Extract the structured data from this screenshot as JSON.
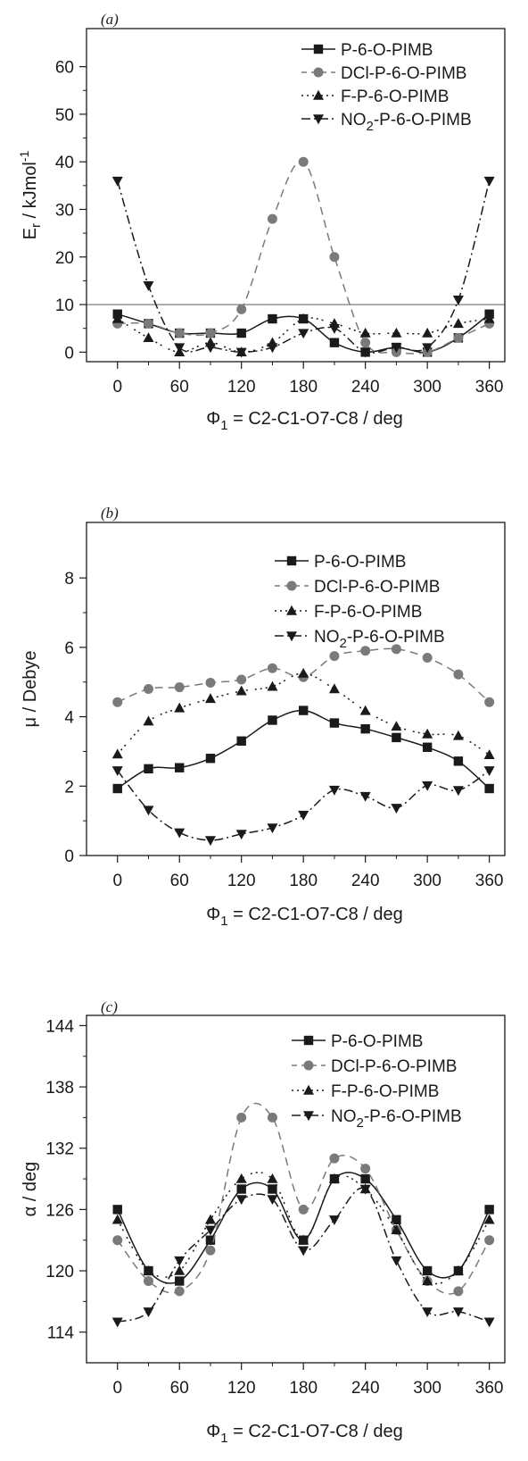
{
  "colors": {
    "black": "#1a1a1a",
    "gray": "#7a7a7a"
  },
  "legend": [
    "P-6-O-PIMB",
    "DCl-P-6-O-PIMB",
    "F-P-6-O-PIMB",
    "NO2-P-6-O-PIMB"
  ],
  "chart_data": [
    {
      "type": "line",
      "panel_label": "(a)",
      "xlabel": "Φ1 = C2-C1-O7-C8 / deg",
      "ylabel": "Er / kJmol-1",
      "xlim": [
        -30,
        375
      ],
      "ylim": [
        -2,
        68
      ],
      "xticks": [
        0,
        60,
        120,
        180,
        240,
        300,
        360
      ],
      "yticks": [
        0,
        10,
        20,
        30,
        40,
        50,
        60
      ],
      "hline": 10,
      "legend_position": "top-right",
      "x": [
        0,
        30,
        60,
        90,
        120,
        150,
        180,
        210,
        240,
        270,
        300,
        330,
        360
      ],
      "series": [
        {
          "name": "P-6-O-PIMB",
          "values": [
            8,
            6,
            4,
            4,
            4,
            7,
            7,
            2,
            0,
            1,
            0,
            3,
            8
          ]
        },
        {
          "name": "DCl-P-6-O-PIMB",
          "values": [
            6,
            6,
            4,
            4,
            9,
            28,
            40,
            20,
            2,
            0,
            0,
            3,
            6
          ]
        },
        {
          "name": "F-P-6-O-PIMB",
          "values": [
            7,
            3,
            0,
            2,
            0,
            2,
            7,
            6,
            4,
            4,
            4,
            6,
            7
          ]
        },
        {
          "name": "NO2-P-6-O-PIMB",
          "values": [
            36,
            14,
            1,
            1,
            0,
            1,
            4,
            5,
            0,
            1,
            1,
            11,
            36
          ]
        }
      ]
    },
    {
      "type": "line",
      "panel_label": "(b)",
      "xlabel": "Φ1 = C2-C1-O7-C8 / deg",
      "ylabel": "μ / Debye",
      "xlim": [
        -30,
        375
      ],
      "ylim": [
        0,
        9.6
      ],
      "xticks": [
        0,
        60,
        120,
        180,
        240,
        300,
        360
      ],
      "yticks": [
        0,
        2,
        4,
        6,
        8
      ],
      "legend_position": "top-right",
      "x": [
        0,
        30,
        60,
        90,
        120,
        150,
        180,
        210,
        240,
        270,
        300,
        330,
        360
      ],
      "series": [
        {
          "name": "P-6-O-PIMB",
          "values": [
            1.93,
            2.5,
            2.53,
            2.8,
            3.3,
            3.9,
            4.18,
            3.82,
            3.65,
            3.4,
            3.12,
            2.72,
            1.93
          ]
        },
        {
          "name": "DCl-P-6-O-PIMB",
          "values": [
            4.42,
            4.8,
            4.85,
            4.98,
            5.07,
            5.4,
            5.14,
            5.75,
            5.9,
            5.95,
            5.7,
            5.22,
            4.42
          ]
        },
        {
          "name": "F-P-6-O-PIMB",
          "values": [
            2.92,
            3.87,
            4.25,
            4.52,
            4.74,
            4.87,
            5.25,
            4.8,
            4.17,
            3.72,
            3.5,
            3.45,
            2.9
          ]
        },
        {
          "name": "NO2-P-6-O-PIMB",
          "values": [
            2.45,
            1.31,
            0.66,
            0.44,
            0.62,
            0.8,
            1.17,
            1.89,
            1.71,
            1.37,
            2.02,
            1.88,
            2.45
          ]
        }
      ]
    },
    {
      "type": "line",
      "panel_label": "(c)",
      "xlabel": "Φ1 = C2-C1-O7-C8 / deg",
      "ylabel": "α / deg",
      "xlim": [
        -30,
        375
      ],
      "ylim": [
        111,
        145
      ],
      "xticks": [
        0,
        60,
        120,
        180,
        240,
        300,
        360
      ],
      "yticks": [
        114,
        120,
        126,
        132,
        138,
        144
      ],
      "legend_position": "top-right",
      "x": [
        0,
        30,
        60,
        90,
        120,
        150,
        180,
        210,
        240,
        270,
        300,
        330,
        360
      ],
      "series": [
        {
          "name": "P-6-O-PIMB",
          "values": [
            126,
            120,
            119,
            123,
            128,
            128,
            123,
            129,
            129,
            125,
            120,
            120,
            126
          ]
        },
        {
          "name": "DCl-P-6-O-PIMB",
          "values": [
            123,
            119,
            118,
            122,
            135,
            135,
            126,
            131,
            130,
            124,
            119,
            118,
            123
          ]
        },
        {
          "name": "F-P-6-O-PIMB",
          "values": [
            125,
            120,
            120,
            125,
            129,
            129,
            123,
            129,
            128,
            124,
            119,
            120,
            125
          ]
        },
        {
          "name": "NO2-P-6-O-PIMB",
          "values": [
            115,
            116,
            121,
            124,
            127,
            127,
            122,
            125,
            128,
            121,
            116,
            116,
            115
          ]
        }
      ]
    }
  ]
}
